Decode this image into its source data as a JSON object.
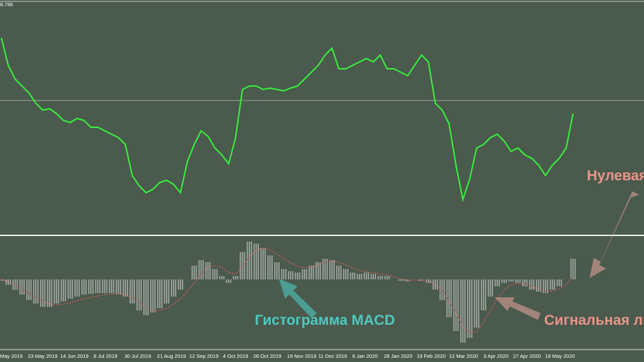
{
  "chart_data": [
    {
      "type": "line",
      "top_label": "8.796",
      "color": "#39f03c",
      "level_line": 194,
      "ylim": [
        0,
        340
      ],
      "values": [
        285,
        245,
        225,
        215,
        205,
        190,
        180,
        182,
        175,
        165,
        162,
        168,
        165,
        155,
        155,
        150,
        145,
        140,
        130,
        85,
        70,
        60,
        65,
        75,
        78,
        72,
        60,
        105,
        130,
        150,
        142,
        125,
        115,
        102,
        140,
        210,
        215,
        215,
        210,
        212,
        210,
        208,
        212,
        215,
        225,
        235,
        245,
        260,
        270,
        240,
        240,
        245,
        250,
        255,
        250,
        260,
        240,
        240,
        235,
        230,
        245,
        260,
        250,
        190,
        180,
        160,
        100,
        50,
        80,
        125,
        130,
        140,
        145,
        135,
        120,
        125,
        115,
        110,
        100,
        85,
        100,
        110,
        125,
        175
      ]
    },
    {
      "type": "bar",
      "color": "#dcdcdc",
      "ylim": [
        -94,
        61
      ],
      "values": [
        -2,
        -8,
        -15,
        -22,
        -30,
        -35,
        -40,
        -40,
        -35,
        -32,
        -28,
        -25,
        -22,
        -21,
        -20,
        -20,
        -20,
        -22,
        -25,
        -35,
        -45,
        -52,
        -48,
        -42,
        -35,
        -25,
        -15,
        0,
        20,
        28,
        25,
        15,
        5,
        -5,
        5,
        40,
        55,
        52,
        45,
        35,
        25,
        15,
        12,
        10,
        15,
        20,
        25,
        30,
        28,
        20,
        15,
        10,
        8,
        10,
        8,
        5,
        5,
        0,
        -2,
        -3,
        0,
        -2,
        -5,
        -15,
        -30,
        -55,
        -75,
        -92,
        -85,
        -70,
        -45,
        -25,
        -10,
        -5,
        -3,
        -5,
        -10,
        -15,
        -18,
        -20,
        -15,
        -10,
        0,
        30
      ],
      "signal": {
        "color": "#e0605a",
        "values": [
          0,
          -3,
          -8,
          -14,
          -20,
          -26,
          -32,
          -36,
          -37,
          -36,
          -34,
          -31,
          -28,
          -26,
          -24,
          -22,
          -21,
          -21,
          -22,
          -26,
          -32,
          -40,
          -45,
          -45,
          -42,
          -36,
          -28,
          -18,
          -5,
          8,
          17,
          20,
          17,
          10,
          8,
          18,
          33,
          43,
          46,
          43,
          37,
          30,
          24,
          19,
          17,
          18,
          21,
          25,
          27,
          25,
          21,
          17,
          13,
          11,
          10,
          8,
          7,
          4,
          1,
          -1,
          -1,
          -1,
          -3,
          -8,
          -17,
          -32,
          -50,
          -68,
          -78,
          -76,
          -62,
          -45,
          -28,
          -15,
          -8,
          -6,
          -7,
          -10,
          -14,
          -17,
          -17,
          -14,
          -8,
          5
        ]
      },
      "x_labels": [
        "May 2019",
        "23 May 2019",
        "14 Jun 2019",
        "8 Jul 2019",
        "30 Jul 2019",
        "21 Aug 2019",
        "12 Sep 2019",
        "4 Oct 2019",
        "28 Oct 2019",
        "19 Nov 2019",
        "11 Dec 2019",
        "6 Jan 2020",
        "28 Jan 2020",
        "19 Feb 2020",
        "12 Mar 2020",
        "3 Apr 2020",
        "27 Apr 2020",
        "19 May 2020"
      ]
    }
  ],
  "annotations": {
    "zero_line": "Нулевая",
    "histogram": "Гистограмма MACD",
    "signal_line": "Сигнальная ли"
  }
}
